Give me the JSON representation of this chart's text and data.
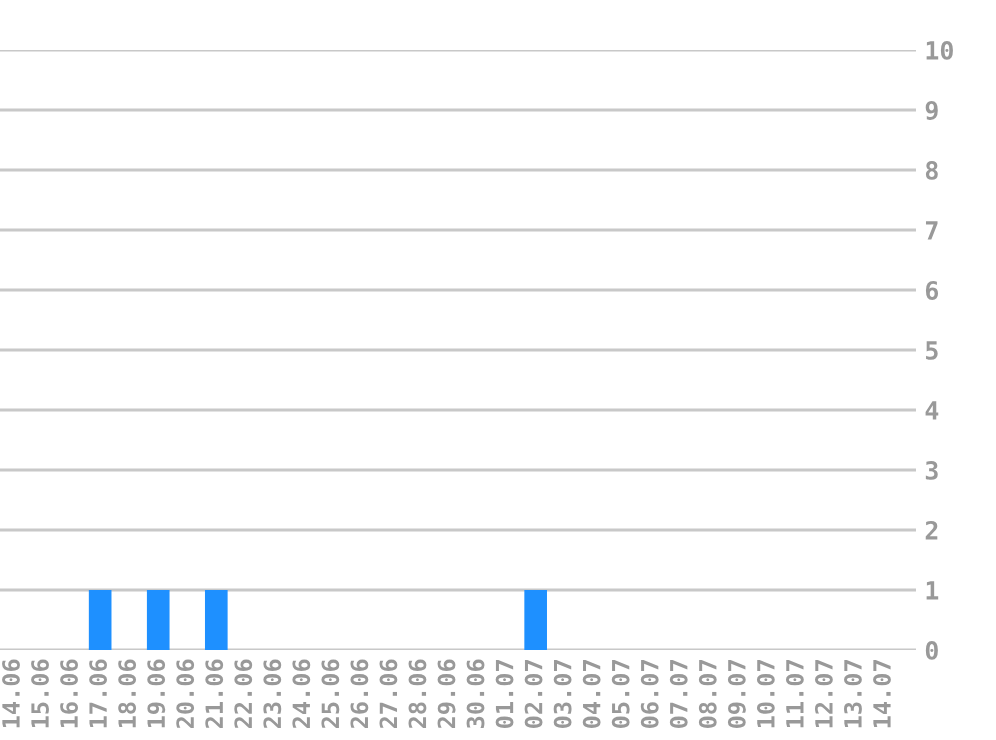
{
  "chart_data": {
    "type": "bar",
    "categories": [
      "14.06",
      "15.06",
      "16.06",
      "17.06",
      "18.06",
      "19.06",
      "20.06",
      "21.06",
      "22.06",
      "23.06",
      "24.06",
      "25.06",
      "26.06",
      "27.06",
      "28.06",
      "29.06",
      "30.06",
      "01.07",
      "02.07",
      "03.07",
      "04.07",
      "05.07",
      "06.07",
      "07.07",
      "08.07",
      "09.07",
      "10.07",
      "11.07",
      "12.07",
      "13.07",
      "14.07"
    ],
    "values": [
      0,
      0,
      0,
      1,
      0,
      1,
      0,
      1,
      0,
      0,
      0,
      0,
      0,
      0,
      0,
      0,
      0,
      0,
      1,
      0,
      0,
      0,
      0,
      0,
      0,
      0,
      0,
      0,
      0,
      0,
      0
    ],
    "color": "#1e90ff",
    "ylim": [
      0,
      10
    ],
    "yticks": [
      0,
      1,
      2,
      3,
      4,
      5,
      6,
      7,
      8,
      9,
      10
    ],
    "grid": "y"
  }
}
